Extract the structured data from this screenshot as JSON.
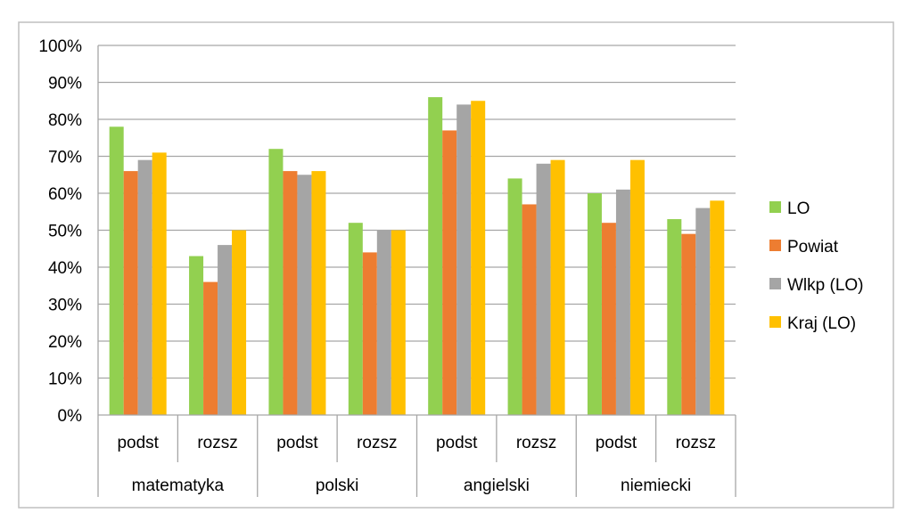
{
  "chart_data": {
    "type": "bar",
    "categories": [
      {
        "label": "podst",
        "group": "matematyka"
      },
      {
        "label": "rozsz",
        "group": "matematyka"
      },
      {
        "label": "podst",
        "group": "polski"
      },
      {
        "label": "rozsz",
        "group": "polski"
      },
      {
        "label": "podst",
        "group": "angielski"
      },
      {
        "label": "rozsz",
        "group": "angielski"
      },
      {
        "label": "podst",
        "group": "niemiecki"
      },
      {
        "label": "rozsz",
        "group": "niemiecki"
      }
    ],
    "groups": [
      "matematyka",
      "polski",
      "angielski",
      "niemiecki"
    ],
    "series": [
      {
        "name": "LO",
        "color": "#92d050",
        "values": [
          78,
          43,
          72,
          52,
          86,
          64,
          60,
          53
        ]
      },
      {
        "name": "Powiat",
        "color": "#ed7d31",
        "values": [
          66,
          36,
          66,
          44,
          77,
          57,
          52,
          49
        ]
      },
      {
        "name": "Wlkp (LO)",
        "color": "#a5a5a5",
        "values": [
          69,
          46,
          65,
          50,
          84,
          68,
          61,
          56
        ]
      },
      {
        "name": "Kraj (LO)",
        "color": "#ffc000",
        "values": [
          71,
          50,
          66,
          50,
          85,
          69,
          69,
          58
        ]
      }
    ],
    "ylim": [
      0,
      100
    ],
    "yticks": [
      "0%",
      "10%",
      "20%",
      "30%",
      "40%",
      "50%",
      "60%",
      "70%",
      "80%",
      "90%",
      "100%"
    ],
    "legend_position": "right",
    "grid": true
  }
}
